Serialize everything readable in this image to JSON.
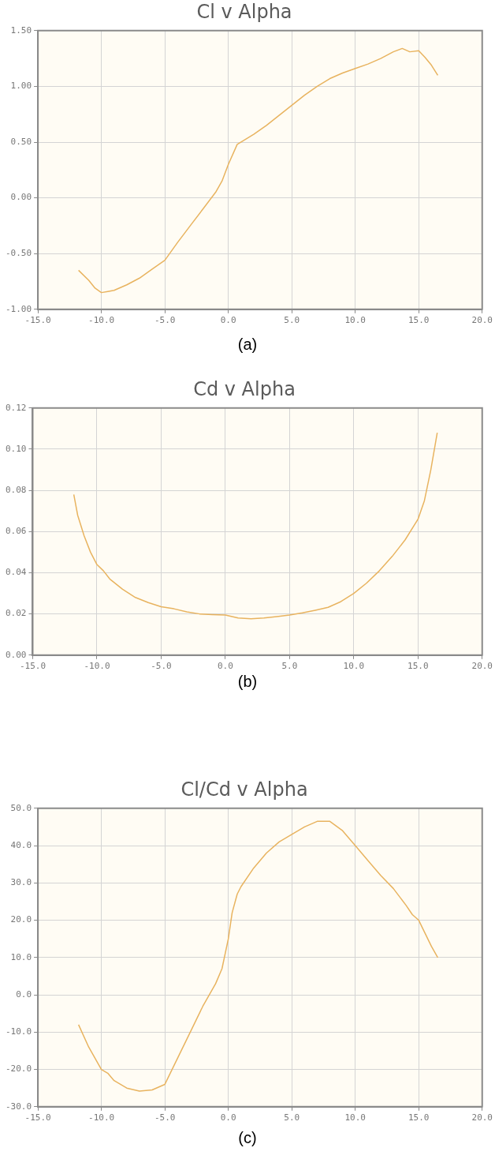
{
  "chart_data": [
    {
      "type": "line",
      "title": "Cl v Alpha",
      "annotations": [
        "(a)"
      ],
      "grid": true,
      "legend": false,
      "marker": "none",
      "line_style": "solid",
      "xlim": [
        -15,
        20
      ],
      "xticks": [
        {
          "value": -15,
          "label": "-15.0"
        },
        {
          "value": -10,
          "label": "-10.0"
        },
        {
          "value": -5,
          "label": "-5.0"
        },
        {
          "value": 0,
          "label": "0.0"
        },
        {
          "value": 5,
          "label": "5.0"
        },
        {
          "value": 10,
          "label": "10.0"
        },
        {
          "value": 15,
          "label": "15.0"
        },
        {
          "value": 20,
          "label": "20.0"
        }
      ],
      "ylim": [
        -1,
        1.5
      ],
      "yticks": [
        {
          "value": -1,
          "label": "-1.00"
        },
        {
          "value": -0.5,
          "label": "-0.50"
        },
        {
          "value": 0,
          "label": "0.00"
        },
        {
          "value": 0.5,
          "label": "0.50"
        },
        {
          "value": 1,
          "label": "1.00"
        },
        {
          "value": 1.5,
          "label": "1.50"
        }
      ],
      "series": [
        {
          "color": "#e8b35f",
          "x": [
            -11.8,
            -11,
            -10.5,
            -10,
            -9.5,
            -9,
            -8,
            -7,
            -6,
            -5,
            -4,
            -3,
            -2,
            -1,
            -0.5,
            0,
            0.7,
            2,
            3,
            4,
            5,
            6,
            7,
            8,
            9,
            10,
            11,
            12,
            12.5,
            13,
            13.7,
            14.3,
            15,
            15.5,
            16,
            16.5
          ],
          "values": [
            -0.65,
            -0.74,
            -0.81,
            -0.85,
            -0.84,
            -0.83,
            -0.78,
            -0.72,
            -0.64,
            -0.56,
            -0.4,
            -0.25,
            -0.1,
            0.05,
            0.15,
            0.3,
            0.48,
            0.57,
            0.65,
            0.74,
            0.83,
            0.92,
            1.0,
            1.07,
            1.12,
            1.16,
            1.2,
            1.25,
            1.28,
            1.31,
            1.34,
            1.31,
            1.32,
            1.26,
            1.19,
            1.1
          ]
        }
      ]
    },
    {
      "type": "line",
      "title": "Cd v Alpha",
      "annotations": [
        "(b)"
      ],
      "grid": true,
      "legend": false,
      "marker": "none",
      "line_style": "solid",
      "xlim": [
        -15,
        20
      ],
      "xticks": [
        {
          "value": -15,
          "label": "-15.0"
        },
        {
          "value": -10,
          "label": "-10.0"
        },
        {
          "value": -5,
          "label": "-5.0"
        },
        {
          "value": 0,
          "label": "0.0"
        },
        {
          "value": 5,
          "label": "5.0"
        },
        {
          "value": 10,
          "label": "10.0"
        },
        {
          "value": 15,
          "label": "15.0"
        },
        {
          "value": 20,
          "label": "20.0"
        }
      ],
      "ylim": [
        0,
        0.12
      ],
      "yticks": [
        {
          "value": 0,
          "label": "0.00"
        },
        0.02,
        0.04,
        0.06,
        0.08,
        {
          "value": 0.1,
          "label": "0.10"
        },
        0.12
      ],
      "series": [
        {
          "color": "#e8b35f",
          "x": [
            -11.8,
            -11.5,
            -11,
            -10.5,
            -10,
            -9.5,
            -9,
            -8,
            -7,
            -6,
            -5,
            -4,
            -3,
            -2,
            -1,
            0,
            1,
            2,
            3,
            4,
            5,
            6,
            7,
            8,
            9,
            10,
            11,
            12,
            13,
            14,
            15,
            15.5,
            16,
            16.5
          ],
          "values": [
            0.078,
            0.068,
            0.058,
            0.05,
            0.044,
            0.041,
            0.037,
            0.032,
            0.028,
            0.0255,
            0.0235,
            0.0225,
            0.021,
            0.02,
            0.0197,
            0.0195,
            0.018,
            0.0177,
            0.018,
            0.0187,
            0.0195,
            0.0205,
            0.0218,
            0.0232,
            0.026,
            0.03,
            0.035,
            0.041,
            0.048,
            0.056,
            0.066,
            0.075,
            0.09,
            0.108
          ]
        }
      ]
    },
    {
      "type": "line",
      "title": "Cl/Cd v Alpha",
      "annotations": [
        "(c)"
      ],
      "grid": true,
      "legend": false,
      "marker": "none",
      "line_style": "solid",
      "xlim": [
        -15,
        20
      ],
      "xticks": [
        {
          "value": -15,
          "label": "-15.0"
        },
        {
          "value": -10,
          "label": "-10.0"
        },
        {
          "value": -5,
          "label": "-5.0"
        },
        {
          "value": 0,
          "label": "0.0"
        },
        {
          "value": 5,
          "label": "5.0"
        },
        {
          "value": 10,
          "label": "10.0"
        },
        {
          "value": 15,
          "label": "15.0"
        },
        {
          "value": 20,
          "label": "20.0"
        }
      ],
      "ylim": [
        -30,
        50
      ],
      "yticks": [
        {
          "value": -30,
          "label": "-30.0"
        },
        {
          "value": -20,
          "label": "-20.0"
        },
        {
          "value": -10,
          "label": "-10.0"
        },
        {
          "value": 0,
          "label": "0.0"
        },
        {
          "value": 10,
          "label": "10.0"
        },
        {
          "value": 20,
          "label": "20.0"
        },
        {
          "value": 30,
          "label": "30.0"
        },
        {
          "value": 40,
          "label": "40.0"
        },
        {
          "value": 50,
          "label": "50.0"
        }
      ],
      "series": [
        {
          "color": "#e8b35f",
          "x": [
            -11.8,
            -11,
            -10,
            -9.5,
            -9,
            -8,
            -7,
            -6,
            -5,
            -4,
            -3,
            -2,
            -1,
            -0.5,
            0,
            0.3,
            0.7,
            1,
            2,
            3,
            4,
            5,
            6,
            7,
            8,
            9,
            10,
            11,
            12,
            13,
            14,
            14.5,
            15,
            16,
            16.5
          ],
          "values": [
            -8,
            -14,
            -20,
            -21,
            -23,
            -25,
            -25.8,
            -25.5,
            -24,
            -17,
            -10,
            -3,
            3,
            7,
            15,
            22,
            27,
            29,
            34,
            38,
            41,
            43,
            45,
            46.5,
            46.5,
            44,
            40,
            36,
            32,
            28.5,
            24,
            21.5,
            20,
            13,
            10
          ]
        }
      ]
    }
  ]
}
